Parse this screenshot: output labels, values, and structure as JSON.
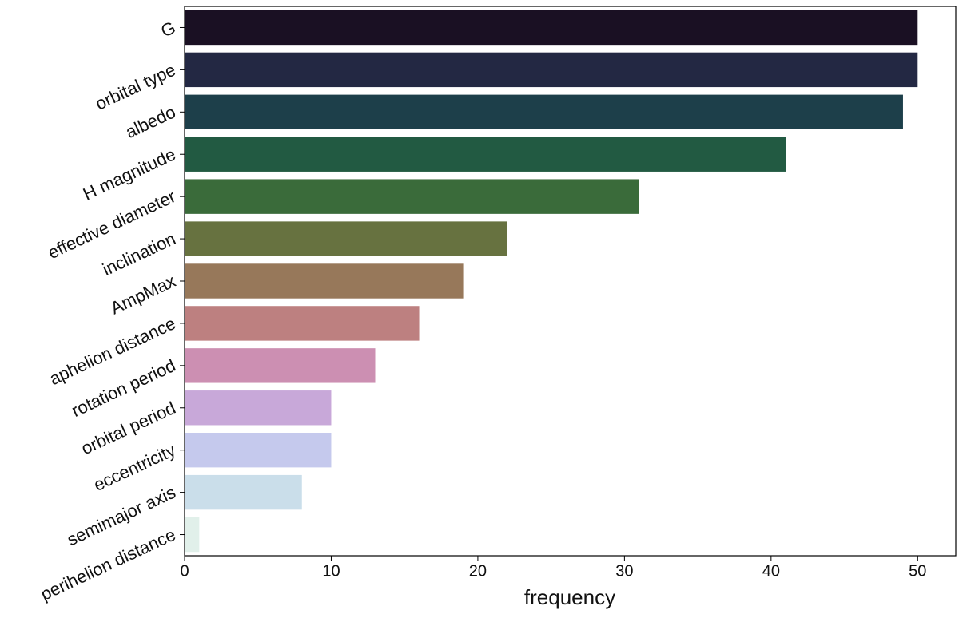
{
  "chart_data": {
    "type": "bar",
    "orientation": "horizontal",
    "xlabel": "frequency",
    "categories": [
      "G",
      "orbital type",
      "albedo",
      "H magnitude",
      "effective diameter",
      "inclination",
      "AmpMax",
      "aphelion distance",
      "rotation period",
      "orbital period",
      "eccentricity",
      "semimajor axis",
      "perihelion distance"
    ],
    "values": [
      50,
      50,
      49,
      41,
      31,
      22,
      19,
      16,
      13,
      10,
      10,
      8,
      1
    ],
    "colors": [
      "#1a1023",
      "#232843",
      "#1d3f4a",
      "#225a42",
      "#3a6b3a",
      "#677240",
      "#97785a",
      "#bd8080",
      "#cc8fb2",
      "#c8a8d9",
      "#c5c9ed",
      "#cadeea",
      "#e1f0ea"
    ],
    "xlim": [
      0,
      52.6
    ],
    "xticks": [
      0,
      10,
      20,
      30,
      40,
      50
    ],
    "grid": false
  }
}
